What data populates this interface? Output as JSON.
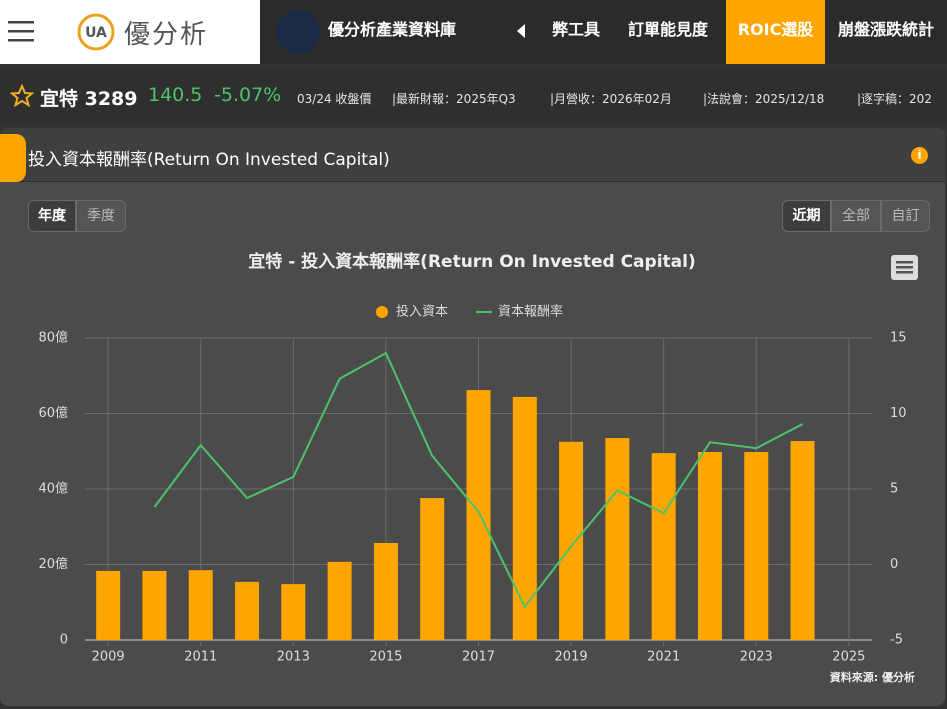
{
  "header": {
    "logo_icon": "UA",
    "logo_text": "優分析",
    "nav_feature": "優分析產業資料庫",
    "nav_items": [
      "弊工具",
      "訂單能見度",
      "ROIC選股",
      "崩盤漲跌統計"
    ]
  },
  "stock": {
    "name": "宜特 3289",
    "price": "140.5",
    "change": "-5.07%",
    "price_note": "03/24 收盤價",
    "info": [
      "|最新財報：2025年Q3",
      "|月營收：2026年02月",
      "|法說會：2025/12/18",
      "|逐字稿：202"
    ]
  },
  "card": {
    "title": "投入資本報酬率(Return On Invested Capital)",
    "period_tabs": [
      "年度",
      "季度"
    ],
    "range_tabs": [
      "近期",
      "全部",
      "自訂"
    ]
  },
  "chart_data": {
    "type": "bar",
    "title": "宜特 - 投入資本報酬率(Return On Invested Capital)",
    "x": [
      2009,
      2010,
      2011,
      2012,
      2013,
      2014,
      2015,
      2016,
      2017,
      2018,
      2019,
      2020,
      2021,
      2022,
      2023,
      2024
    ],
    "series": [
      {
        "name": "投入資本",
        "type": "bar",
        "color": "#ffa500",
        "values": [
          18.3,
          18.3,
          18.5,
          15.4,
          14.8,
          20.7,
          25.7,
          37.6,
          66.2,
          64.4,
          52.5,
          53.5,
          49.5,
          49.8,
          49.8,
          52.7
        ]
      },
      {
        "name": "資本報酬率",
        "type": "line",
        "axis": "y2",
        "color": "#4cc36a",
        "values": [
          null,
          3.8,
          7.9,
          4.4,
          5.8,
          12.3,
          14.0,
          7.2,
          3.5,
          -2.8,
          1.2,
          4.9,
          3.4,
          8.1,
          7.7,
          9.3
        ]
      }
    ],
    "xlim": [
      2008.5,
      2025.5
    ],
    "xticks": [
      2009,
      2011,
      2013,
      2015,
      2017,
      2019,
      2021,
      2023,
      2025
    ],
    "ylim": [
      0,
      80
    ],
    "yticks": [
      0,
      {
        "value": 20,
        "label": "20億"
      },
      {
        "value": 40,
        "label": "40億"
      },
      {
        "value": 60,
        "label": "60億"
      },
      {
        "value": 80,
        "label": "80億"
      }
    ],
    "y2lim": [
      -5,
      15
    ],
    "y2ticks": [
      -5,
      0,
      5,
      10,
      15
    ],
    "grid": true,
    "source": "資料來源: 優分析"
  }
}
